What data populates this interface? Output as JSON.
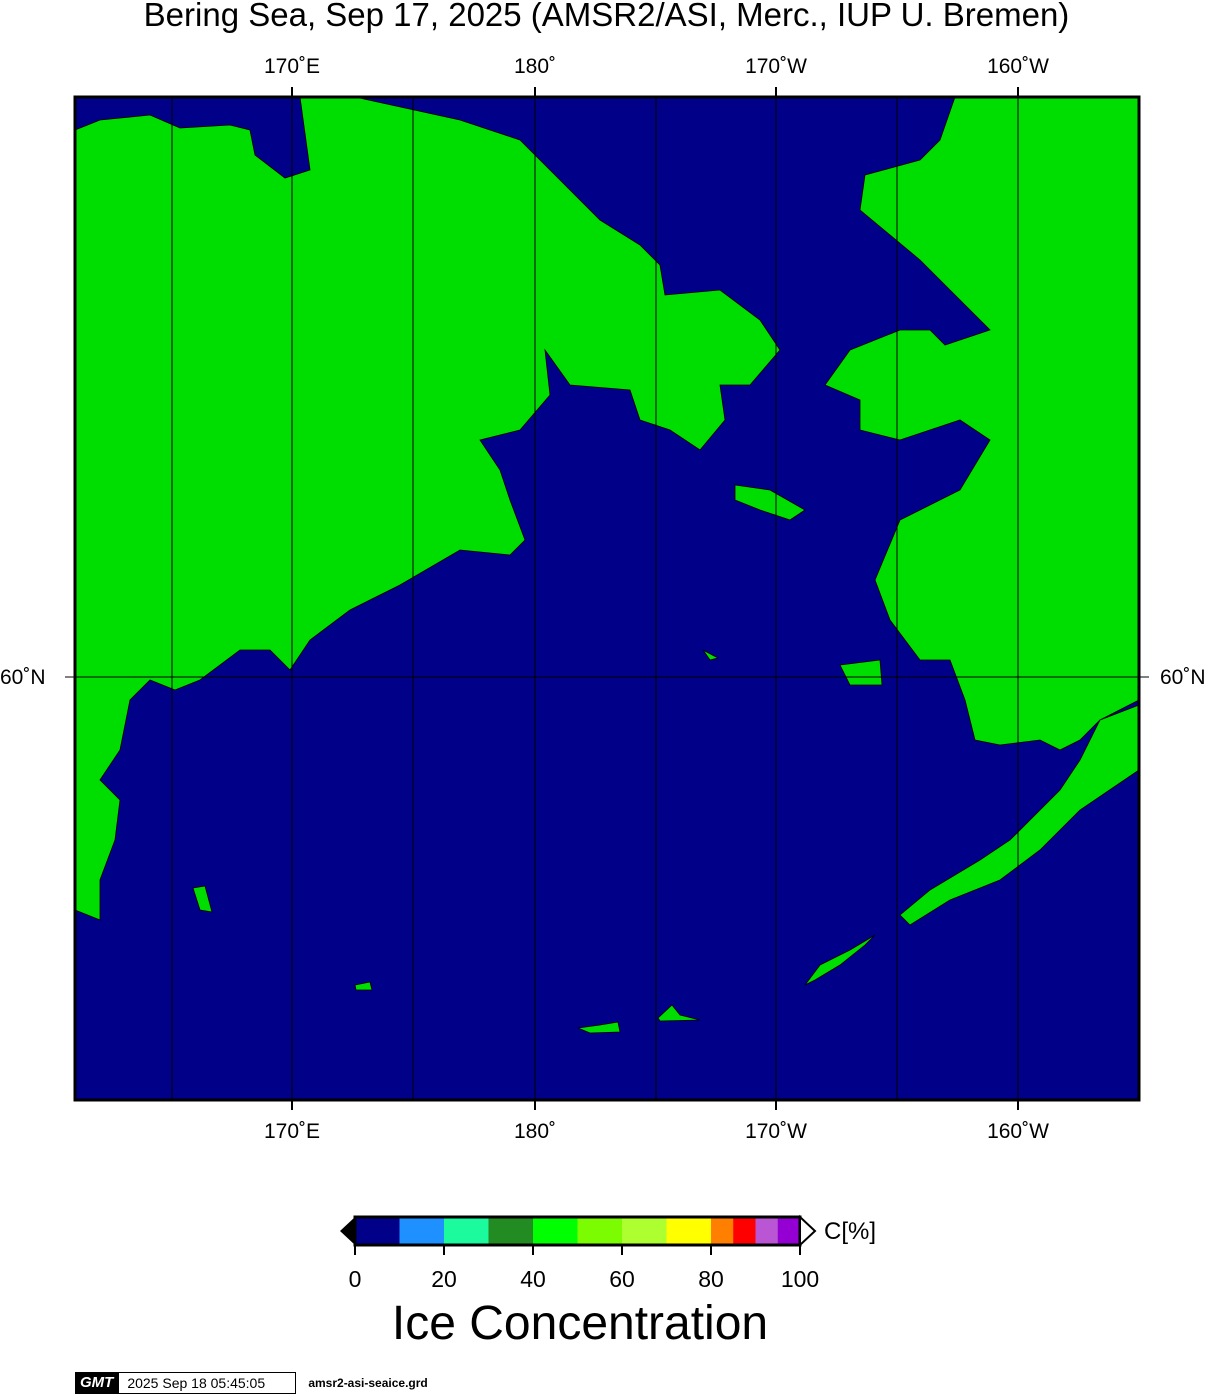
{
  "title": "Bering Sea, Sep 17, 2025 (AMSR2/ASI, Merc., IUP U. Bremen)",
  "map": {
    "projection": "Mercator",
    "colors": {
      "ocean": "#000088",
      "land": "#00dd00",
      "coast": "#000000",
      "grid": "#000000"
    },
    "lon_ticks": [
      "170˚E",
      "180˚",
      "170˚W",
      "160˚W"
    ],
    "lat_ticks": [
      "60˚N"
    ]
  },
  "colorbar": {
    "unit": "C[%]",
    "title": "Ice Concentration",
    "labels": [
      "0",
      "20",
      "40",
      "60",
      "80",
      "100"
    ],
    "bins": [
      {
        "from": 0,
        "to": 10,
        "color": "#000088"
      },
      {
        "from": 10,
        "to": 20,
        "color": "#1e90ff"
      },
      {
        "from": 20,
        "to": 30,
        "color": "#1cfa9e"
      },
      {
        "from": 30,
        "to": 40,
        "color": "#228b22"
      },
      {
        "from": 40,
        "to": 50,
        "color": "#00ff00"
      },
      {
        "from": 50,
        "to": 60,
        "color": "#7cfc00"
      },
      {
        "from": 60,
        "to": 70,
        "color": "#adff2f"
      },
      {
        "from": 70,
        "to": 80,
        "color": "#ffff00"
      },
      {
        "from": 80,
        "to": 85,
        "color": "#ff8000"
      },
      {
        "from": 85,
        "to": 90,
        "color": "#ff0000"
      },
      {
        "from": 90,
        "to": 95,
        "color": "#ba55d3"
      },
      {
        "from": 95,
        "to": 100,
        "color": "#9400d3"
      }
    ]
  },
  "footer": {
    "logo": "GMT",
    "timestamp": "2025 Sep 18 05:45:05",
    "file": "amsr2-asi-seaice.grd"
  }
}
